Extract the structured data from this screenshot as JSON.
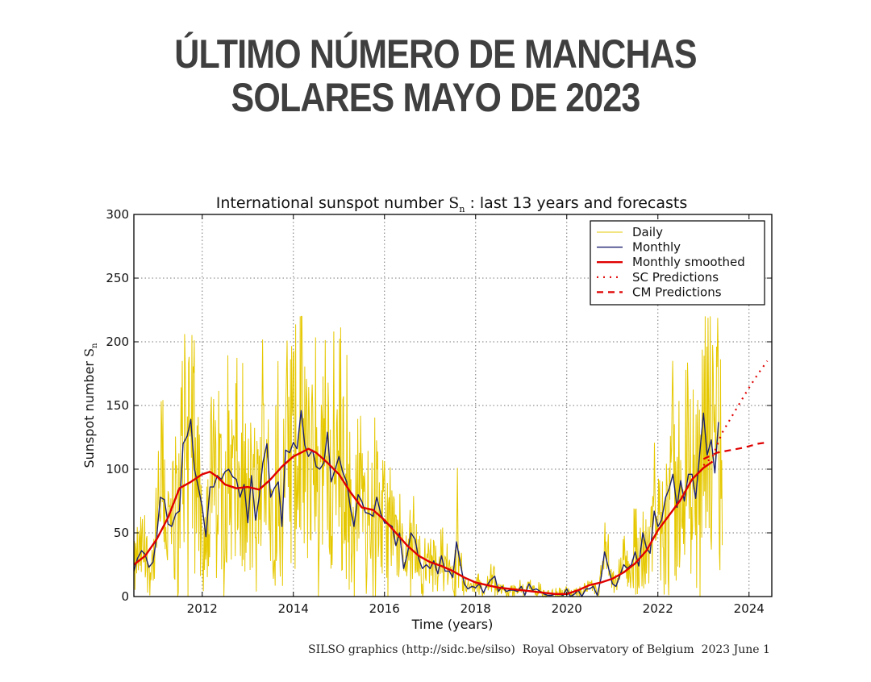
{
  "header": {
    "title": "ÚLTIMO NÚMERO DE MANCHAS SOLARES MAYO DE 2023"
  },
  "footer": {
    "credit": "SILSO graphics (http://sidc.be/silso)  Royal Observatory of Belgium  2023 June 1"
  },
  "chart_data": {
    "type": "line",
    "title": "International sunspot number",
    "title_symbol": "S",
    "title_symbol_sub": "n",
    "title_suffix": ": last 13 years and forecasts",
    "xlabel": "Time (years)",
    "ylabel": "Sunspot number",
    "ylabel_symbol": "S",
    "ylabel_symbol_sub": "n",
    "xlim": [
      2010.5,
      2024.5
    ],
    "ylim": [
      0,
      300
    ],
    "xticks": [
      2012,
      2014,
      2016,
      2018,
      2020,
      2022,
      2024
    ],
    "yticks": [
      0,
      50,
      100,
      150,
      200,
      250,
      300
    ],
    "grid": true,
    "legend_position": "top-right",
    "series": [
      {
        "name": "Daily",
        "color": "#e6c800",
        "style": "solid-thin",
        "x_range": [
          2010.5,
          2023.42
        ],
        "y_envelope": "spiky daily values surrounding the monthly series",
        "approx_peak": 220
      },
      {
        "name": "Monthly",
        "color": "#1a1f6e",
        "style": "solid",
        "points": [
          [
            2010.5,
            20
          ],
          [
            2010.58,
            30
          ],
          [
            2010.67,
            36
          ],
          [
            2010.75,
            33
          ],
          [
            2010.83,
            23
          ],
          [
            2010.92,
            27
          ],
          [
            2011.0,
            47
          ],
          [
            2011.08,
            78
          ],
          [
            2011.17,
            76
          ],
          [
            2011.25,
            57
          ],
          [
            2011.33,
            55
          ],
          [
            2011.42,
            65
          ],
          [
            2011.5,
            67
          ],
          [
            2011.58,
            120
          ],
          [
            2011.67,
            126
          ],
          [
            2011.75,
            139
          ],
          [
            2011.83,
            100
          ],
          [
            2011.92,
            85
          ],
          [
            2012.0,
            70
          ],
          [
            2012.08,
            47
          ],
          [
            2012.17,
            86
          ],
          [
            2012.25,
            86
          ],
          [
            2012.33,
            95
          ],
          [
            2012.42,
            92
          ],
          [
            2012.5,
            98
          ],
          [
            2012.58,
            100
          ],
          [
            2012.67,
            94
          ],
          [
            2012.75,
            92
          ],
          [
            2012.83,
            78
          ],
          [
            2012.92,
            88
          ],
          [
            2013.0,
            58
          ],
          [
            2013.08,
            95
          ],
          [
            2013.17,
            60
          ],
          [
            2013.25,
            78
          ],
          [
            2013.33,
            105
          ],
          [
            2013.42,
            120
          ],
          [
            2013.5,
            78
          ],
          [
            2013.58,
            85
          ],
          [
            2013.67,
            90
          ],
          [
            2013.75,
            55
          ],
          [
            2013.83,
            115
          ],
          [
            2013.92,
            113
          ],
          [
            2014.0,
            121
          ],
          [
            2014.08,
            116
          ],
          [
            2014.17,
            146
          ],
          [
            2014.25,
            119
          ],
          [
            2014.33,
            110
          ],
          [
            2014.42,
            115
          ],
          [
            2014.5,
            102
          ],
          [
            2014.58,
            100
          ],
          [
            2014.67,
            105
          ],
          [
            2014.75,
            129
          ],
          [
            2014.83,
            90
          ],
          [
            2014.92,
            100
          ],
          [
            2015.0,
            110
          ],
          [
            2015.08,
            98
          ],
          [
            2015.17,
            90
          ],
          [
            2015.25,
            70
          ],
          [
            2015.33,
            55
          ],
          [
            2015.42,
            80
          ],
          [
            2015.5,
            75
          ],
          [
            2015.58,
            66
          ],
          [
            2015.67,
            65
          ],
          [
            2015.75,
            63
          ],
          [
            2015.83,
            78
          ],
          [
            2015.92,
            65
          ],
          [
            2016.0,
            58
          ],
          [
            2016.08,
            57
          ],
          [
            2016.17,
            55
          ],
          [
            2016.25,
            40
          ],
          [
            2016.33,
            50
          ],
          [
            2016.42,
            22
          ],
          [
            2016.5,
            33
          ],
          [
            2016.58,
            50
          ],
          [
            2016.67,
            45
          ],
          [
            2016.75,
            30
          ],
          [
            2016.83,
            22
          ],
          [
            2016.92,
            25
          ],
          [
            2017.0,
            22
          ],
          [
            2017.08,
            28
          ],
          [
            2017.17,
            18
          ],
          [
            2017.25,
            32
          ],
          [
            2017.33,
            20
          ],
          [
            2017.42,
            20
          ],
          [
            2017.5,
            15
          ],
          [
            2017.58,
            43
          ],
          [
            2017.67,
            25
          ],
          [
            2017.75,
            10
          ],
          [
            2017.83,
            6
          ],
          [
            2017.92,
            8
          ],
          [
            2018.0,
            7
          ],
          [
            2018.08,
            10
          ],
          [
            2018.17,
            3
          ],
          [
            2018.25,
            9
          ],
          [
            2018.33,
            13
          ],
          [
            2018.42,
            16
          ],
          [
            2018.5,
            4
          ],
          [
            2018.58,
            8
          ],
          [
            2018.67,
            4
          ],
          [
            2018.75,
            5
          ],
          [
            2018.83,
            5
          ],
          [
            2018.92,
            4
          ],
          [
            2019.0,
            8
          ],
          [
            2019.08,
            1
          ],
          [
            2019.17,
            10
          ],
          [
            2019.25,
            5
          ],
          [
            2019.33,
            6
          ],
          [
            2019.42,
            4
          ],
          [
            2019.5,
            2
          ],
          [
            2019.58,
            1
          ],
          [
            2019.67,
            1
          ],
          [
            2019.75,
            2
          ],
          [
            2019.83,
            2
          ],
          [
            2019.92,
            1
          ],
          [
            2020.0,
            6
          ],
          [
            2020.08,
            0
          ],
          [
            2020.17,
            2
          ],
          [
            2020.25,
            5
          ],
          [
            2020.33,
            0
          ],
          [
            2020.42,
            6
          ],
          [
            2020.5,
            6
          ],
          [
            2020.58,
            8
          ],
          [
            2020.67,
            1
          ],
          [
            2020.75,
            14
          ],
          [
            2020.83,
            35
          ],
          [
            2020.92,
            22
          ],
          [
            2021.0,
            10
          ],
          [
            2021.08,
            8
          ],
          [
            2021.17,
            17
          ],
          [
            2021.25,
            25
          ],
          [
            2021.33,
            22
          ],
          [
            2021.42,
            25
          ],
          [
            2021.5,
            35
          ],
          [
            2021.58,
            24
          ],
          [
            2021.67,
            50
          ],
          [
            2021.75,
            38
          ],
          [
            2021.83,
            34
          ],
          [
            2021.92,
            67
          ],
          [
            2022.0,
            55
          ],
          [
            2022.08,
            60
          ],
          [
            2022.17,
            78
          ],
          [
            2022.25,
            85
          ],
          [
            2022.33,
            96
          ],
          [
            2022.42,
            70
          ],
          [
            2022.5,
            91
          ],
          [
            2022.58,
            75
          ],
          [
            2022.67,
            96
          ],
          [
            2022.75,
            96
          ],
          [
            2022.83,
            77
          ],
          [
            2022.92,
            113
          ],
          [
            2023.0,
            144
          ],
          [
            2023.08,
            111
          ],
          [
            2023.17,
            123
          ],
          [
            2023.25,
            97
          ],
          [
            2023.33,
            137
          ]
        ]
      },
      {
        "name": "Monthly smoothed",
        "color": "#e00000",
        "style": "solid-thick",
        "points": [
          [
            2010.5,
            25
          ],
          [
            2010.75,
            32
          ],
          [
            2011.0,
            45
          ],
          [
            2011.25,
            62
          ],
          [
            2011.5,
            85
          ],
          [
            2011.75,
            90
          ],
          [
            2012.0,
            96
          ],
          [
            2012.17,
            98
          ],
          [
            2012.33,
            94
          ],
          [
            2012.5,
            88
          ],
          [
            2012.75,
            85
          ],
          [
            2013.0,
            86
          ],
          [
            2013.25,
            84
          ],
          [
            2013.5,
            92
          ],
          [
            2013.75,
            102
          ],
          [
            2014.0,
            110
          ],
          [
            2014.17,
            113
          ],
          [
            2014.33,
            116
          ],
          [
            2014.5,
            113
          ],
          [
            2014.75,
            105
          ],
          [
            2015.0,
            96
          ],
          [
            2015.25,
            82
          ],
          [
            2015.5,
            70
          ],
          [
            2015.75,
            68
          ],
          [
            2016.0,
            60
          ],
          [
            2016.25,
            50
          ],
          [
            2016.5,
            40
          ],
          [
            2016.75,
            32
          ],
          [
            2017.0,
            27
          ],
          [
            2017.25,
            24
          ],
          [
            2017.5,
            20
          ],
          [
            2017.75,
            15
          ],
          [
            2018.0,
            11
          ],
          [
            2018.25,
            9
          ],
          [
            2018.5,
            7
          ],
          [
            2018.75,
            6
          ],
          [
            2019.0,
            5
          ],
          [
            2019.25,
            4
          ],
          [
            2019.5,
            3
          ],
          [
            2019.75,
            2
          ],
          [
            2020.0,
            2
          ],
          [
            2020.25,
            5
          ],
          [
            2020.5,
            9
          ],
          [
            2020.75,
            11
          ],
          [
            2021.0,
            14
          ],
          [
            2021.25,
            19
          ],
          [
            2021.5,
            26
          ],
          [
            2021.75,
            36
          ],
          [
            2022.0,
            52
          ],
          [
            2022.25,
            64
          ],
          [
            2022.5,
            76
          ],
          [
            2022.75,
            92
          ],
          [
            2023.0,
            101
          ],
          [
            2023.2,
            106
          ]
        ]
      },
      {
        "name": "SC Predictions",
        "color": "#e00000",
        "style": "dotted",
        "points": [
          [
            2023.0,
            103
          ],
          [
            2023.2,
            110
          ],
          [
            2023.4,
            128
          ],
          [
            2023.6,
            140
          ],
          [
            2023.8,
            152
          ],
          [
            2024.0,
            164
          ],
          [
            2024.2,
            175
          ],
          [
            2024.4,
            185
          ]
        ]
      },
      {
        "name": "CM Predictions",
        "color": "#e00000",
        "style": "dashed",
        "points": [
          [
            2023.0,
            108
          ],
          [
            2023.3,
            113
          ],
          [
            2023.6,
            115
          ],
          [
            2023.9,
            117
          ],
          [
            2024.2,
            120
          ],
          [
            2024.4,
            121
          ]
        ]
      }
    ]
  }
}
